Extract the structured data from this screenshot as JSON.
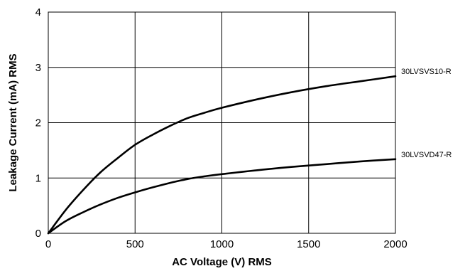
{
  "chart_data": {
    "type": "line",
    "title": "",
    "xlabel": "AC Voltage (V) RMS",
    "ylabel": "Leakage Current (mA) RMS",
    "xlim": [
      0,
      2000
    ],
    "ylim": [
      0,
      4
    ],
    "x_ticks": [
      "0",
      "500",
      "1000",
      "1500",
      "2000"
    ],
    "y_ticks": [
      "0",
      "1",
      "2",
      "3",
      "4"
    ],
    "grid": true,
    "legend": "labels at right end of each line",
    "series": [
      {
        "name": "30LVSVS10-R",
        "x": [
          0,
          100,
          200,
          300,
          400,
          500,
          600,
          700,
          800,
          900,
          1000,
          1200,
          1400,
          1600,
          1800,
          2000
        ],
        "y": [
          0,
          0.42,
          0.78,
          1.1,
          1.36,
          1.6,
          1.78,
          1.94,
          2.08,
          2.18,
          2.27,
          2.42,
          2.55,
          2.66,
          2.75,
          2.84
        ]
      },
      {
        "name": "30LVSVD47-R",
        "x": [
          0,
          100,
          200,
          300,
          400,
          500,
          600,
          700,
          800,
          900,
          1000,
          1200,
          1400,
          1600,
          1800,
          2000
        ],
        "y": [
          0,
          0.22,
          0.38,
          0.52,
          0.64,
          0.74,
          0.83,
          0.91,
          0.98,
          1.03,
          1.07,
          1.14,
          1.2,
          1.25,
          1.3,
          1.34
        ]
      }
    ]
  }
}
